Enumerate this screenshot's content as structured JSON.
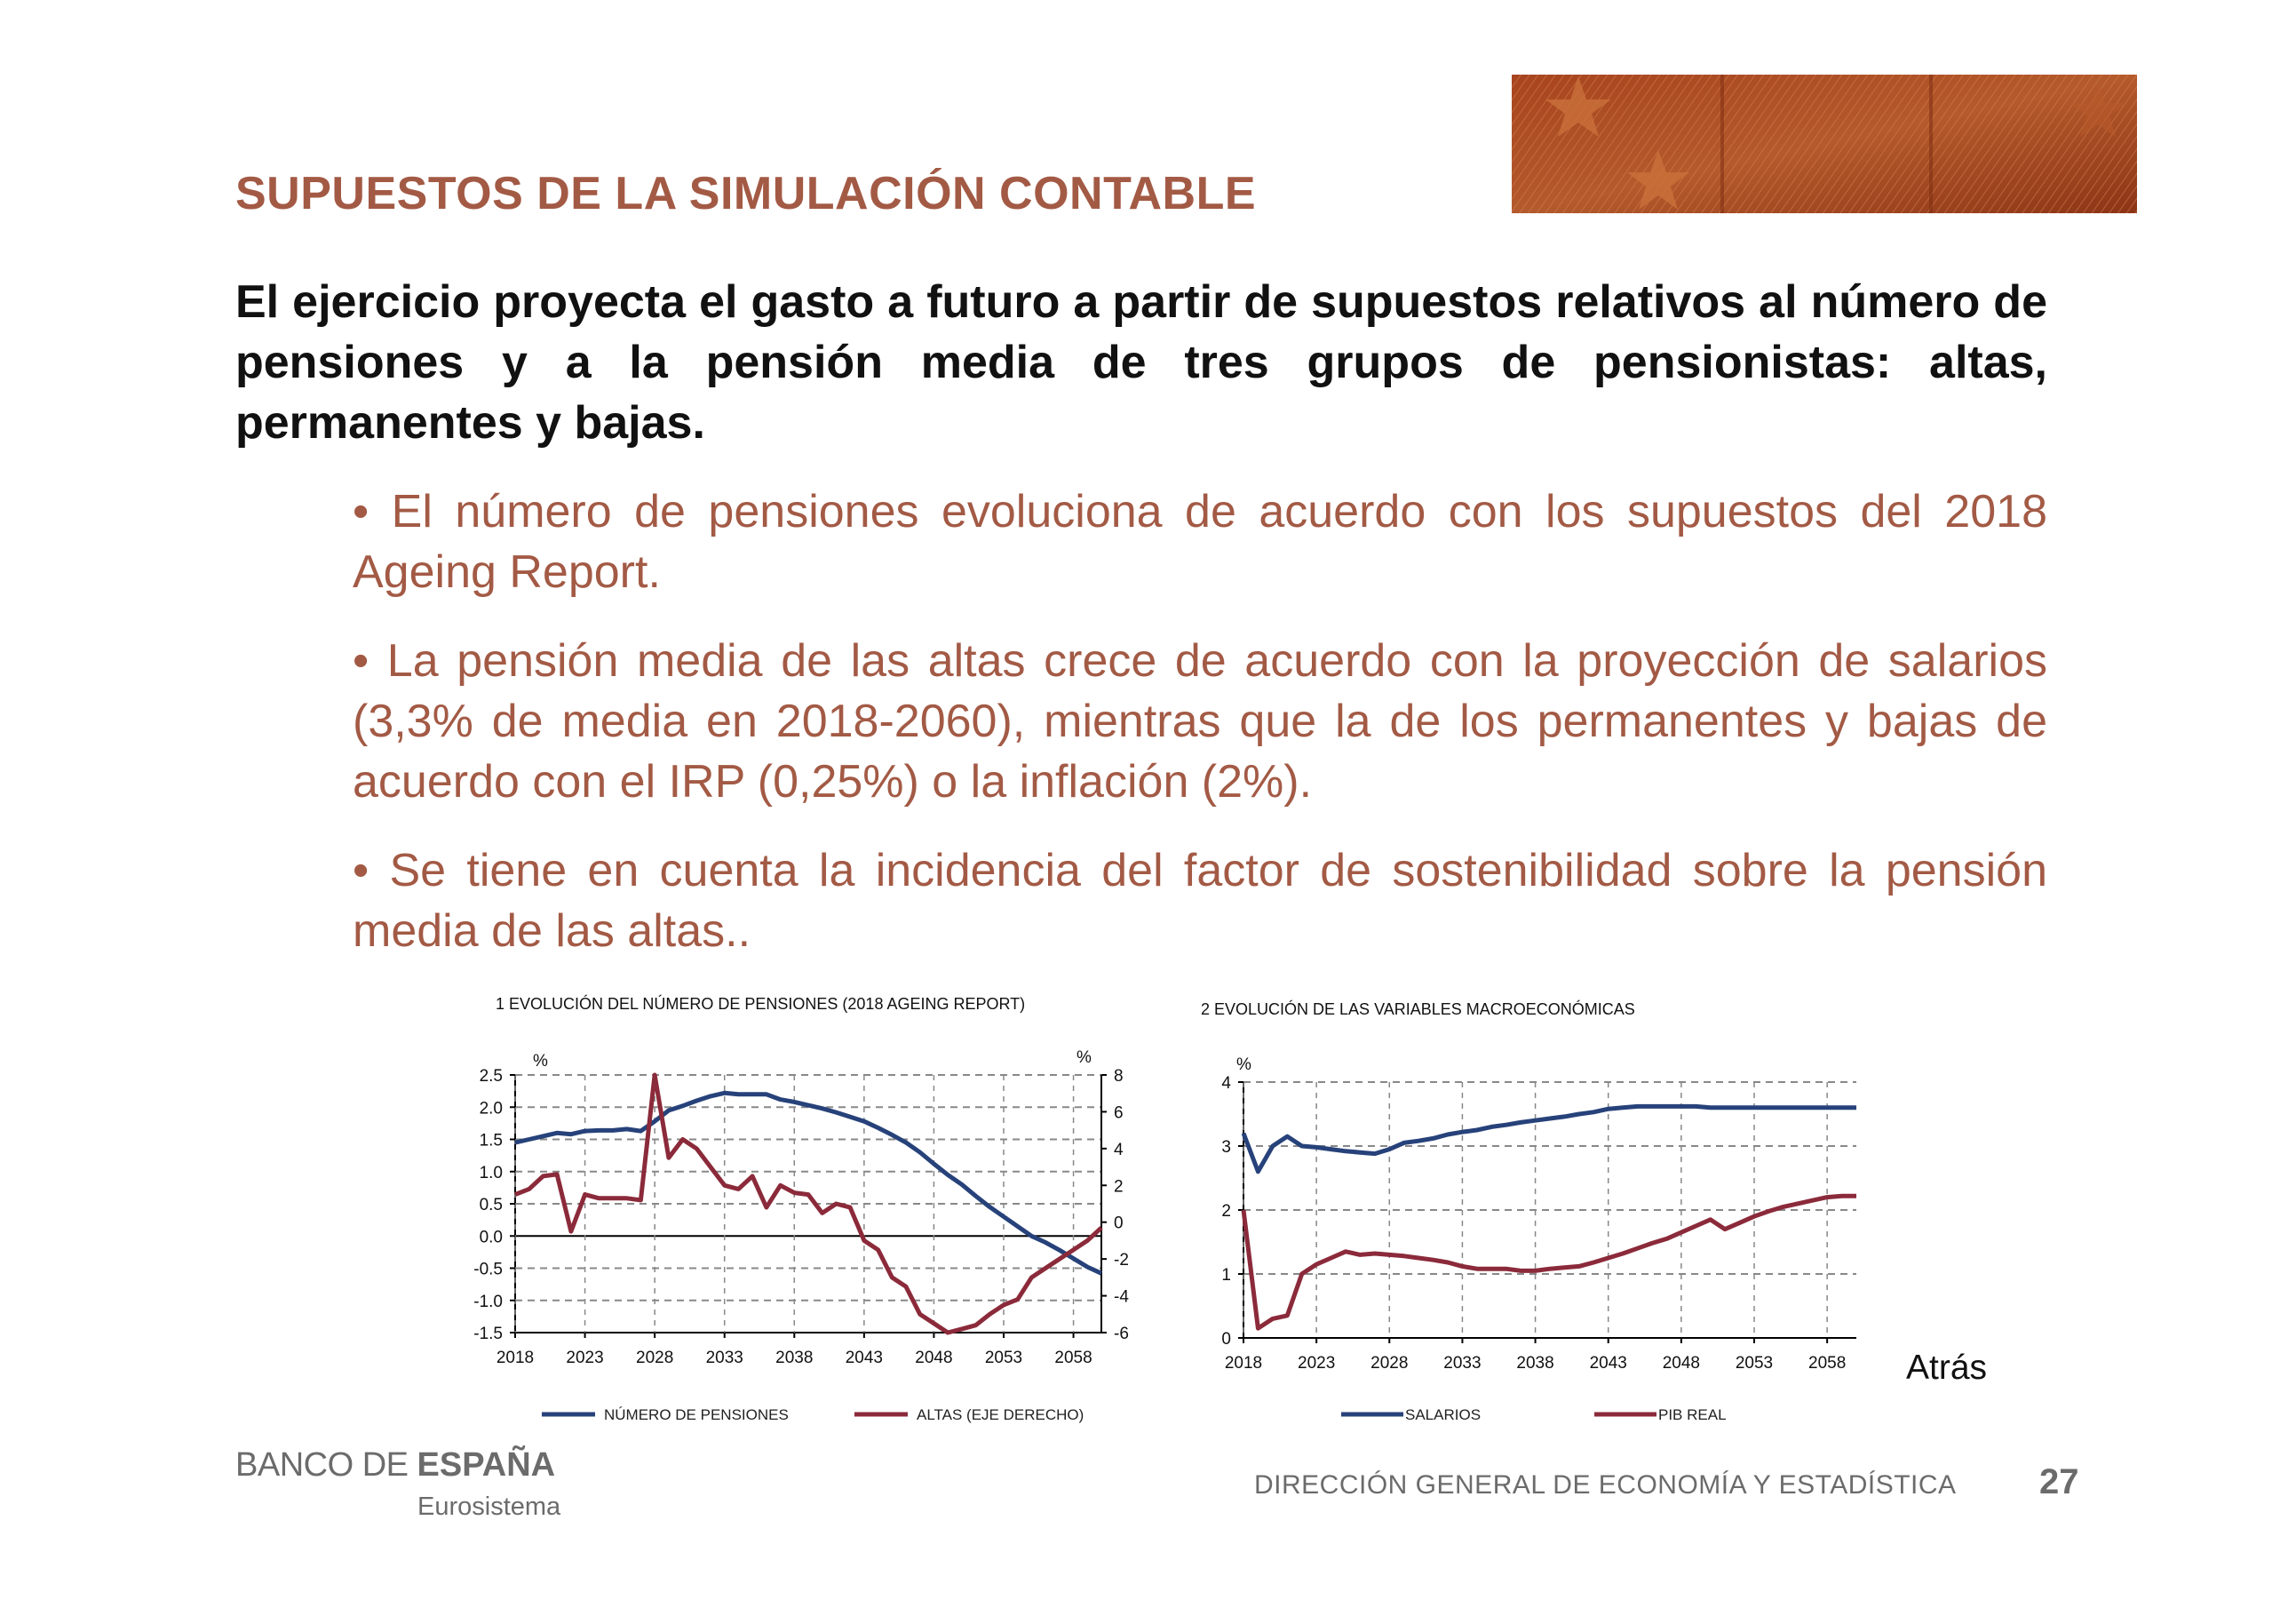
{
  "header": {
    "title": "SUPUESTOS DE LA SIMULACIÓN CONTABLE"
  },
  "intro": "El ejercicio proyecta el gasto a futuro a partir de supuestos relativos al número de pensiones y a la pensión media de tres grupos de pensionistas: altas, permanentes y bajas.",
  "bullets": [
    "• El número de pensiones evoluciona de acuerdo con los supuestos del 2018 Ageing Report.",
    "• La pensión media de las altas crece de acuerdo con la proyección de salarios (3,3% de media en 2018-2060), mientras que la de los permanentes y bajas de acuerdo con el IRP (0,25%) o la inflación (2%).",
    "• Se tiene en cuenta la incidencia del factor de sostenibilidad sobre la pensión media de las altas.."
  ],
  "chart_data": [
    {
      "type": "line",
      "title": "1 EVOLUCIÓN DEL NÚMERO DE PENSIONES (2018 AGEING REPORT)",
      "ylabel_left": "%",
      "ylabel_right": "%",
      "ylim": [
        -1.5,
        2.5
      ],
      "ylim_right": [
        -6,
        8
      ],
      "y_ticks": [
        "2.5",
        "2.0",
        "1.5",
        "1.0",
        "0.5",
        "0.0",
        "-0.5",
        "-1.0",
        "-1.5"
      ],
      "y_ticks_right": [
        "8",
        "6",
        "4",
        "2",
        "0",
        "-2",
        "-4",
        "-6"
      ],
      "x_ticks": [
        "2018",
        "2023",
        "2028",
        "2033",
        "2038",
        "2043",
        "2048",
        "2053",
        "2058"
      ],
      "x": [
        2018,
        2019,
        2020,
        2021,
        2022,
        2023,
        2024,
        2025,
        2026,
        2027,
        2028,
        2029,
        2030,
        2031,
        2032,
        2033,
        2034,
        2035,
        2036,
        2037,
        2038,
        2039,
        2040,
        2041,
        2042,
        2043,
        2044,
        2045,
        2046,
        2047,
        2048,
        2049,
        2050,
        2051,
        2052,
        2053,
        2054,
        2055,
        2056,
        2057,
        2058,
        2059,
        2060
      ],
      "series": [
        {
          "name": "NÚMERO DE PENSIONES",
          "axis": "left",
          "color": "#27427a",
          "values": [
            1.45,
            1.5,
            1.55,
            1.6,
            1.58,
            1.63,
            1.64,
            1.64,
            1.66,
            1.63,
            1.78,
            1.95,
            2.02,
            2.1,
            2.17,
            2.22,
            2.2,
            2.2,
            2.2,
            2.12,
            2.08,
            2.03,
            1.98,
            1.92,
            1.85,
            1.78,
            1.68,
            1.57,
            1.45,
            1.3,
            1.12,
            0.95,
            0.8,
            0.62,
            0.45,
            0.3,
            0.15,
            0.0,
            -0.1,
            -0.22,
            -0.35,
            -0.48,
            -0.58
          ]
        },
        {
          "name": "ALTAS (EJE DERECHO)",
          "axis": "right",
          "color": "#8b2a3a",
          "values": [
            1.5,
            1.8,
            2.5,
            2.6,
            -0.5,
            1.5,
            1.3,
            1.3,
            1.3,
            1.2,
            8.0,
            3.5,
            4.5,
            4.0,
            3.0,
            2.0,
            1.8,
            2.5,
            0.8,
            2.0,
            1.6,
            1.5,
            0.5,
            1.0,
            0.8,
            -1.0,
            -1.5,
            -3.0,
            -3.5,
            -5.0,
            -5.5,
            -6.0,
            -5.8,
            -5.6,
            -5.0,
            -4.5,
            -4.2,
            -3.0,
            -2.5,
            -2.0,
            -1.5,
            -1.0,
            -0.3
          ]
        }
      ]
    },
    {
      "type": "line",
      "title": "2 EVOLUCIÓN DE LAS VARIABLES MACROECONÓMICAS",
      "ylabel": "%",
      "ylim": [
        0,
        4
      ],
      "y_ticks": [
        "4",
        "3",
        "2",
        "1",
        "0"
      ],
      "x_ticks": [
        "2018",
        "2023",
        "2028",
        "2033",
        "2038",
        "2043",
        "2048",
        "2053",
        "2058"
      ],
      "x": [
        2018,
        2019,
        2020,
        2021,
        2022,
        2023,
        2024,
        2025,
        2026,
        2027,
        2028,
        2029,
        2030,
        2031,
        2032,
        2033,
        2034,
        2035,
        2036,
        2037,
        2038,
        2039,
        2040,
        2041,
        2042,
        2043,
        2044,
        2045,
        2046,
        2047,
        2048,
        2049,
        2050,
        2051,
        2052,
        2053,
        2054,
        2055,
        2056,
        2057,
        2058,
        2059,
        2060
      ],
      "series": [
        {
          "name": "SALARIOS",
          "color": "#27427a",
          "values": [
            3.2,
            2.6,
            3.0,
            3.15,
            3.0,
            2.98,
            2.95,
            2.92,
            2.9,
            2.88,
            2.95,
            3.05,
            3.08,
            3.12,
            3.18,
            3.22,
            3.25,
            3.3,
            3.33,
            3.37,
            3.4,
            3.43,
            3.46,
            3.5,
            3.53,
            3.58,
            3.6,
            3.62,
            3.62,
            3.62,
            3.62,
            3.62,
            3.6,
            3.6,
            3.6,
            3.6,
            3.6,
            3.6,
            3.6,
            3.6,
            3.6,
            3.6,
            3.6
          ]
        },
        {
          "name": "PIB REAL",
          "color": "#8b2a3a",
          "values": [
            2.0,
            0.15,
            0.3,
            0.35,
            1.0,
            1.15,
            1.25,
            1.35,
            1.3,
            1.32,
            1.3,
            1.28,
            1.25,
            1.22,
            1.18,
            1.12,
            1.08,
            1.08,
            1.08,
            1.05,
            1.05,
            1.08,
            1.1,
            1.12,
            1.18,
            1.25,
            1.32,
            1.4,
            1.48,
            1.55,
            1.65,
            1.75,
            1.85,
            1.7,
            1.8,
            1.9,
            1.98,
            2.05,
            2.1,
            2.15,
            2.2,
            2.22,
            2.22
          ]
        }
      ]
    }
  ],
  "back_link": "Atrás",
  "logo": {
    "part1": "BANCO DE ",
    "part2": "ESPAÑA",
    "sub": "Eurosistema"
  },
  "footer": {
    "text": "DIRECCIÓN GENERAL DE ECONOMÍA Y ESTADÍSTICA",
    "page": "27"
  }
}
